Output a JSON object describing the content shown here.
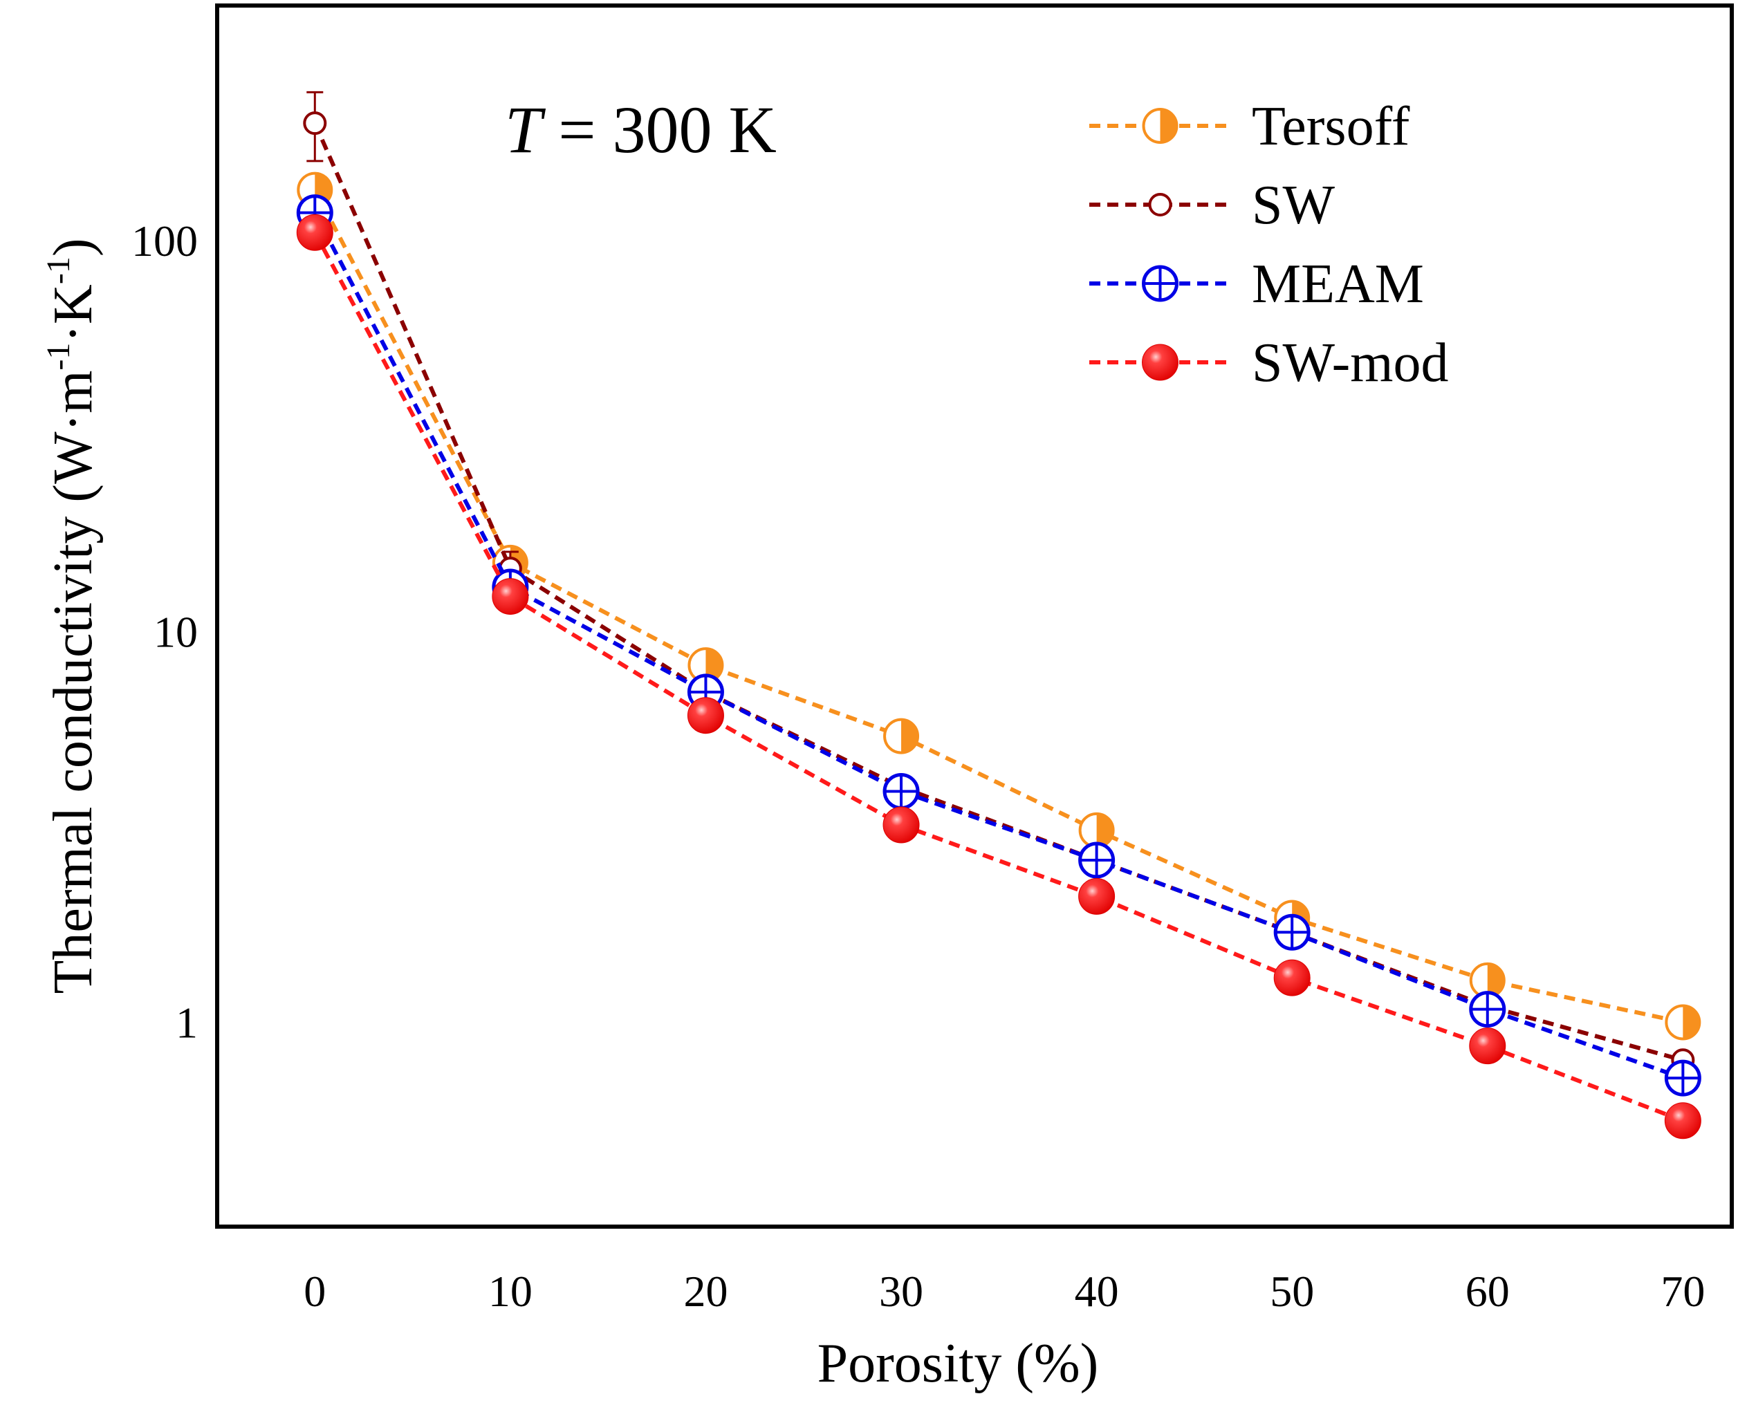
{
  "chart_data": {
    "type": "line",
    "annotation": {
      "italic_symbol": "T",
      "rest": " = 300 K"
    },
    "xlabel": "Porosity (%)",
    "ylabel": {
      "prefix": "Thermal conductivity (W",
      "dot1": "·",
      "m": "m",
      "exp1": "-1",
      "dot2": "·",
      "k": "K",
      "exp2": "-1",
      "suffix": ")"
    },
    "y_scale": "log",
    "xlim": [
      -5,
      72.5
    ],
    "ylim": [
      0.3,
      400
    ],
    "x": [
      0,
      10,
      20,
      30,
      40,
      50,
      60,
      70
    ],
    "x_tick_labels": [
      "0",
      "10",
      "20",
      "30",
      "40",
      "50",
      "60",
      "70"
    ],
    "y_ticks": [
      1,
      10,
      100
    ],
    "y_tick_labels": [
      "1",
      "10",
      "100"
    ],
    "grid": false,
    "legend_position": "top-right",
    "series": [
      {
        "name": "Tersoff",
        "color": "#f7901e",
        "marker": "half-filled-circle",
        "values": [
          135,
          15,
          8.2,
          5.4,
          3.1,
          1.85,
          1.28,
          1.0
        ],
        "errors": [
          12,
          1.2,
          0.5,
          0.3,
          0.15,
          0.1,
          0.05,
          0.04
        ]
      },
      {
        "name": "SW",
        "color": "#8b0000",
        "marker": "open-circle",
        "values": [
          200,
          14.5,
          7.0,
          4.0,
          2.6,
          1.7,
          1.1,
          0.8
        ],
        "errors": [
          40,
          1.5,
          0.4,
          0.2,
          0.1,
          0.08,
          0.05,
          0.03
        ]
      },
      {
        "name": "MEAM",
        "color": "#0000e6",
        "marker": "crossed-circle",
        "values": [
          118,
          13.0,
          7.0,
          3.9,
          2.6,
          1.7,
          1.08,
          0.72
        ],
        "errors": [
          10,
          1.0,
          0.4,
          0.2,
          0.1,
          0.06,
          0.04,
          0.03
        ]
      },
      {
        "name": "SW-mod",
        "color": "#ff1a1a",
        "marker": "filled-sphere",
        "values": [
          105,
          12.3,
          6.1,
          3.2,
          2.1,
          1.3,
          0.87,
          0.56
        ],
        "errors": [
          8,
          0.8,
          0.3,
          0.15,
          0.1,
          0.05,
          0.04,
          0.02
        ]
      }
    ]
  }
}
